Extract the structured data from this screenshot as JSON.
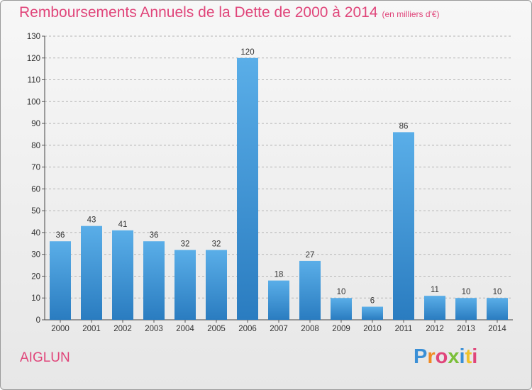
{
  "header": {
    "title": "Remboursements Annuels de la Dette de 2000 à 2014",
    "subtitle": "(en milliers d'€)"
  },
  "footer": {
    "place": "AIGLUN",
    "logo": {
      "letters": [
        "P",
        "r",
        "o",
        "x",
        "i",
        "t",
        "i"
      ],
      "colors": [
        "#3a8fd6",
        "#f08a24",
        "#e0457a",
        "#7bbf3a",
        "#3a8fd6",
        "#f0c22a",
        "#e0457a"
      ]
    }
  },
  "chart_data": {
    "type": "bar",
    "title": "Remboursements Annuels de la Dette de 2000 à 2014",
    "subtitle": "(en milliers d'€)",
    "xlabel": "",
    "ylabel": "",
    "categories": [
      "2000",
      "2001",
      "2002",
      "2003",
      "2004",
      "2005",
      "2006",
      "2007",
      "2008",
      "2009",
      "2010",
      "2011",
      "2012",
      "2013",
      "2014"
    ],
    "values": [
      36,
      43,
      41,
      36,
      32,
      32,
      120,
      18,
      27,
      10,
      6,
      86,
      11,
      10,
      10
    ],
    "ylim": [
      0,
      130
    ],
    "yticks": [
      0,
      10,
      20,
      30,
      40,
      50,
      60,
      70,
      80,
      90,
      100,
      110,
      120,
      130
    ],
    "grid": "horizontal dashed",
    "bar_color_top": "#5aaee8",
    "bar_color_bottom": "#2a7cc0"
  }
}
